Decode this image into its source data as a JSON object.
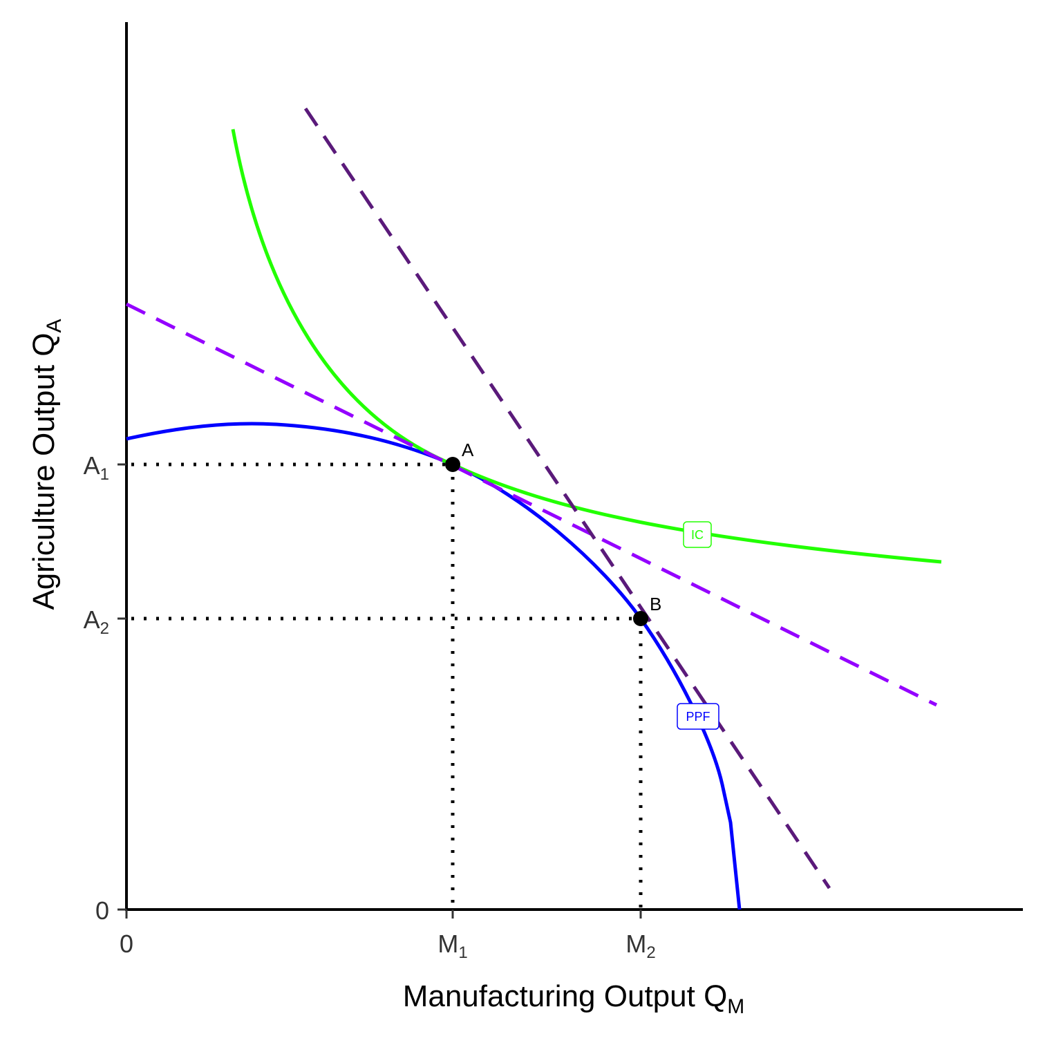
{
  "axes": {
    "x_title": {
      "text": "Manufacturing Output Q",
      "sub": "M"
    },
    "y_title": {
      "text": "Agriculture Output Q",
      "sub": "A"
    }
  },
  "x_ticks": [
    {
      "text": "0"
    },
    {
      "text": "M",
      "sub": "1"
    },
    {
      "text": "M",
      "sub": "2"
    }
  ],
  "y_ticks": [
    {
      "text": "0"
    },
    {
      "text": "A",
      "sub": "1"
    },
    {
      "text": "A",
      "sub": "2"
    }
  ],
  "points": [
    {
      "label": "A"
    },
    {
      "label": "B"
    }
  ],
  "curves": [
    {
      "label": "IC"
    },
    {
      "label": "PPF"
    }
  ]
}
